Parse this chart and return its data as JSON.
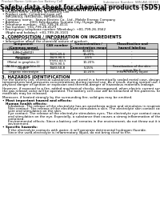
{
  "header_left": "Product Name: Lithium Ion Battery Cell",
  "header_right": "Substance Number: SBN-AW-00010\nEstablished / Revision: Dec.7,2018",
  "title": "Safety data sheet for chemical products (SDS)",
  "section1_title": "1. PRODUCT AND COMPANY IDENTIFICATION",
  "section1_lines": [
    "• Product name: Lithium Ion Battery Cell",
    "• Product code: Cylindrical-type cell",
    "   INR18650J, INR18650L, INR18650A",
    "• Company name:   Sanyo Electric Co., Ltd., Mobile Energy Company",
    "• Address:          2001 Kamikosaka, Sumoto City, Hyogo, Japan",
    "• Telephone number:  +81-799-26-4111",
    "• Fax number: +81-799-26-4129",
    "• Emergency telephone number (Weekday): +81-799-26-3562",
    "   (Night and holiday): +81-799-26-3101"
  ],
  "section2_title": "2. COMPOSITION / INFORMATION ON INGREDIENTS",
  "section2_sub": "• Substance or preparation: Preparation",
  "section2_sub2": "• Information about the chemical nature of product:",
  "table_header_labels": [
    "Component\n(Common name)",
    "CAS number",
    "Concentration /\nConcentration range",
    "Classification and\nhazard labeling"
  ],
  "table_rows": [
    [
      "Lithium cobalt oxide\n(LiMnCoNiO2)",
      "-",
      "30-60%",
      "-"
    ],
    [
      "Iron",
      "7439-89-6",
      "15-25%",
      "-"
    ],
    [
      "Aluminum",
      "7429-90-5",
      "2-5%",
      "-"
    ],
    [
      "Graphite\n(Metal in graphite-1)\n(Al-film on graphite-1)",
      "77581-42-5\n7429-90-5",
      "10-20%",
      "-"
    ],
    [
      "Copper",
      "7440-50-8",
      "5-15%",
      "Sensitization of the skin\ngroup No.2"
    ],
    [
      "Organic electrolyte",
      "-",
      "10-20%",
      "Inflammatory liquid"
    ]
  ],
  "section3_title": "3. HAZARDS IDENTIFICATION",
  "section3_paras": [
    "For the battery cell, chemical substances are stored in a hermetically sealed metal case, designed to withstand",
    "temperatures and pressures-concentrations during normal use. As a result, during normal use, there is no",
    "physical danger of ignition or explosion and thermal-danger of hazardous materials leakage.",
    "",
    "However, if exposed to a fire, added mechanical shocks, decomposed, when electric current surpasses the rates,",
    "the gas release valve will be operated. The battery cell case will be breached of fire-patterns, hazardous",
    "materials may be released.",
    "",
    "Moreover, if heated strongly by the surrounding fire, solid gas may be emitted."
  ],
  "section3_bullet1": "• Most important hazard and effects:",
  "section3_human": "Human health effects:",
  "section3_human_lines": [
    "Inhalation: The release of the electrolyte has an anesthesia action and stimulates in respiratory tract.",
    "Skin contact: The release of the electrolyte stimulates a skin. The electrolyte skin contact causes a",
    "sore and stimulation on the skin.",
    "Eye contact: The release of the electrolyte stimulates eyes. The electrolyte eye contact causes a sore",
    "and stimulation on the eye. Especially, a substance that causes a strong inflammation of the eye is",
    "contained.",
    "Environmental effects: Since a battery cell remains in the environment, do not throw out it into the",
    "environment."
  ],
  "section3_specific": "• Specific hazards:",
  "section3_specific_lines": [
    "If the electrolyte contacts with water, it will generate detrimental hydrogen fluoride.",
    "Since the used-electrolyte is inflammatory liquid, do not bring close to fire."
  ],
  "bg_color": "#ffffff",
  "text_color": "#000000",
  "gray_text": "#666666",
  "table_header_bg": "#c8c8c8",
  "table_row_bg_odd": "#f0f0f0",
  "table_row_bg_even": "#ffffff"
}
